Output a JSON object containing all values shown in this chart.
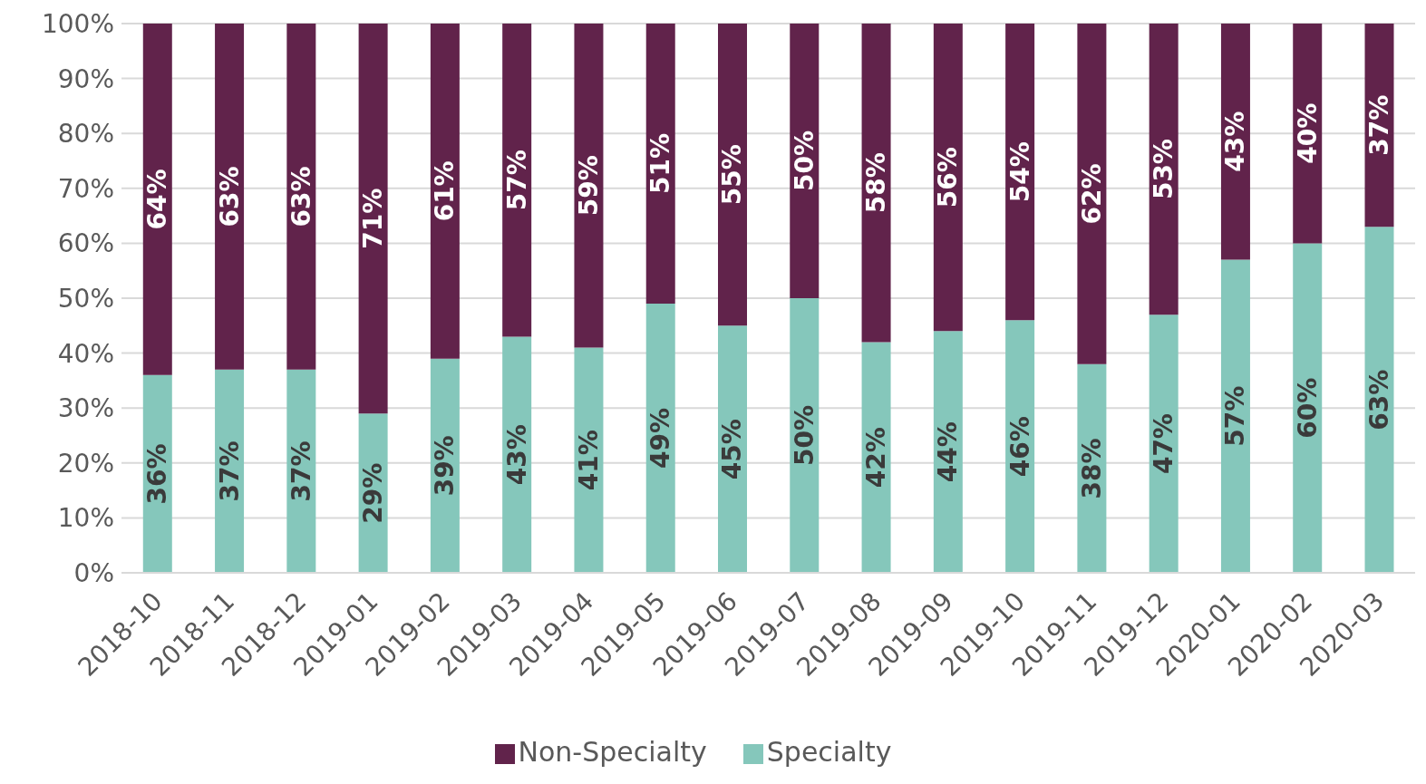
{
  "chart_data": {
    "type": "bar",
    "stacked": true,
    "categories": [
      "2018-10",
      "2018-11",
      "2018-12",
      "2019-01",
      "2019-02",
      "2019-03",
      "2019-04",
      "2019-05",
      "2019-06",
      "2019-07",
      "2019-08",
      "2019-09",
      "2019-10",
      "2019-11",
      "2019-12",
      "2020-01",
      "2020-02",
      "2020-03"
    ],
    "series": [
      {
        "name": "Specialty",
        "color": "#85c7bb",
        "values": [
          36,
          37,
          37,
          29,
          39,
          43,
          41,
          49,
          45,
          50,
          42,
          44,
          46,
          38,
          47,
          57,
          60,
          63
        ],
        "value_labels": [
          "36%",
          "37%",
          "37%",
          "29%",
          "39%",
          "43%",
          "41%",
          "49%",
          "45%",
          "50%",
          "42%",
          "44%",
          "46%",
          "38%",
          "47%",
          "57%",
          "60%",
          "63%"
        ]
      },
      {
        "name": "Non-Specialty",
        "color": "#61234b",
        "values": [
          64,
          63,
          63,
          71,
          61,
          57,
          59,
          51,
          55,
          50,
          58,
          56,
          54,
          62,
          53,
          43,
          40,
          37
        ],
        "value_labels": [
          "64%",
          "63%",
          "63%",
          "71%",
          "61%",
          "57%",
          "59%",
          "51%",
          "55%",
          "50%",
          "58%",
          "56%",
          "54%",
          "62%",
          "53%",
          "43%",
          "40%",
          "37%"
        ]
      }
    ],
    "ylim": [
      0,
      100
    ],
    "yticks": [
      {
        "value": 0,
        "label": "0%"
      },
      {
        "value": 10,
        "label": "10%"
      },
      {
        "value": 20,
        "label": "20%"
      },
      {
        "value": 30,
        "label": "30%"
      },
      {
        "value": 40,
        "label": "40%"
      },
      {
        "value": 50,
        "label": "50%"
      },
      {
        "value": 60,
        "label": "60%"
      },
      {
        "value": 70,
        "label": "70%"
      },
      {
        "value": 80,
        "label": "80%"
      },
      {
        "value": 90,
        "label": "90%"
      },
      {
        "value": 100,
        "label": "100%"
      }
    ],
    "grid": "y",
    "legend": "bottom"
  }
}
